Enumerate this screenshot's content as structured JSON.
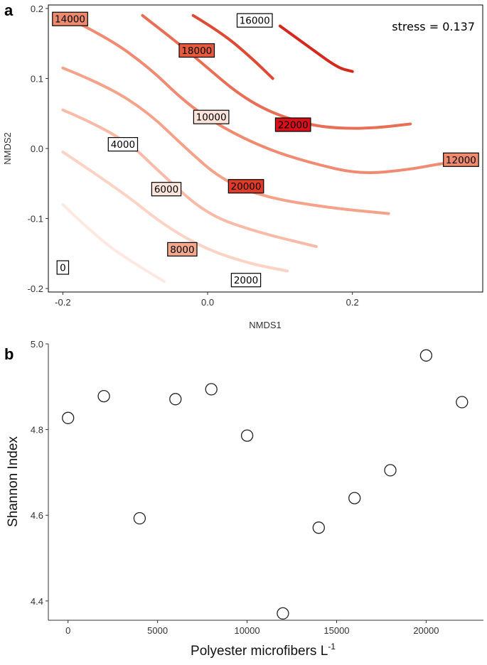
{
  "chart_data": [
    {
      "panel": "a",
      "type": "contour",
      "xlabel": "NMDS1",
      "ylabel": "NMDS2",
      "xlim": [
        -0.22,
        0.38
      ],
      "ylim": [
        -0.205,
        0.205
      ],
      "xticks": [
        "-0.2",
        "0.0",
        "0.2"
      ],
      "yticks": [
        "-0.2",
        "-0.1",
        "0.0",
        "0.1",
        "0.2"
      ],
      "annotation": "stress = 0.137",
      "contours": [
        {
          "level": 2000,
          "color": "#fde9e2",
          "path": [
            [
              -0.2,
              -0.08
            ],
            [
              -0.15,
              -0.13
            ],
            [
              -0.1,
              -0.165
            ],
            [
              -0.06,
              -0.19
            ]
          ]
        },
        {
          "level": 4000,
          "color": "#fcd3c4",
          "path": [
            [
              -0.2,
              -0.005
            ],
            [
              -0.12,
              -0.06
            ],
            [
              -0.06,
              -0.11
            ],
            [
              0.0,
              -0.145
            ],
            [
              0.06,
              -0.165
            ],
            [
              0.11,
              -0.175
            ]
          ]
        },
        {
          "level": 6000,
          "color": "#f9bba8",
          "path": [
            [
              -0.2,
              0.055
            ],
            [
              -0.12,
              0.02
            ],
            [
              -0.06,
              -0.04
            ],
            [
              0.0,
              -0.095
            ],
            [
              0.07,
              -0.12
            ],
            [
              0.15,
              -0.14
            ]
          ]
        },
        {
          "level": 8000,
          "color": "#f5a28b",
          "path": [
            [
              -0.2,
              0.115
            ],
            [
              -0.14,
              0.09
            ],
            [
              -0.08,
              0.05
            ],
            [
              -0.03,
              0.0
            ],
            [
              0.02,
              -0.045
            ],
            [
              0.08,
              -0.07
            ],
            [
              0.17,
              -0.085
            ],
            [
              0.25,
              -0.093
            ]
          ]
        },
        {
          "level": 10000,
          "color": "#f08a70",
          "path": [
            [
              -0.2,
              0.19
            ],
            [
              -0.14,
              0.16
            ],
            [
              -0.08,
              0.115
            ],
            [
              -0.03,
              0.065
            ],
            [
              0.02,
              0.03
            ],
            [
              0.08,
              0.0
            ],
            [
              0.14,
              -0.02
            ],
            [
              0.21,
              -0.037
            ],
            [
              0.28,
              -0.03
            ],
            [
              0.33,
              -0.02
            ],
            [
              0.37,
              -0.018
            ]
          ]
        },
        {
          "level": 12000,
          "color": "#e86f55",
          "path": [
            [
              -0.09,
              0.19
            ],
            [
              -0.04,
              0.15
            ],
            [
              0.0,
              0.115
            ],
            [
              0.04,
              0.08
            ],
            [
              0.08,
              0.055
            ],
            [
              0.12,
              0.04
            ],
            [
              0.16,
              0.03
            ],
            [
              0.22,
              0.028
            ],
            [
              0.28,
              0.035
            ]
          ]
        },
        {
          "level": 14000,
          "color": "#de4a35",
          "path": [
            [
              -0.02,
              0.19
            ],
            [
              0.02,
              0.165
            ],
            [
              0.06,
              0.13
            ],
            [
              0.09,
              0.1
            ]
          ]
        },
        {
          "level": 16000,
          "color": "#d42a1e",
          "path": [
            [
              0.1,
              0.175
            ],
            [
              0.14,
              0.145
            ],
            [
              0.18,
              0.115
            ],
            [
              0.2,
              0.11
            ]
          ]
        }
      ],
      "labels": [
        {
          "text": "14000",
          "x": -0.19,
          "y": 0.185,
          "fill": "#ee8a6e"
        },
        {
          "text": "16000",
          "x": 0.065,
          "y": 0.183,
          "fill": "#ffffff"
        },
        {
          "text": "18000",
          "x": -0.015,
          "y": 0.14,
          "fill": "#e55a3c"
        },
        {
          "text": "10000",
          "x": 0.005,
          "y": 0.045,
          "fill": "#fde4da"
        },
        {
          "text": "22000",
          "x": 0.118,
          "y": 0.034,
          "fill": "#d9101a"
        },
        {
          "text": "12000",
          "x": 0.35,
          "y": -0.016,
          "fill": "#ee8a6e"
        },
        {
          "text": "4000",
          "x": -0.117,
          "y": 0.006,
          "fill": "#ffffff"
        },
        {
          "text": "6000",
          "x": -0.057,
          "y": -0.058,
          "fill": "#fde4da"
        },
        {
          "text": "20000",
          "x": 0.053,
          "y": -0.054,
          "fill": "#e03a28"
        },
        {
          "text": "8000",
          "x": -0.035,
          "y": -0.144,
          "fill": "#f4a98f"
        },
        {
          "text": "0",
          "x": -0.2,
          "y": -0.17,
          "fill": "#ffffff"
        },
        {
          "text": "2000",
          "x": 0.053,
          "y": -0.188,
          "fill": "#ffffff"
        }
      ]
    },
    {
      "panel": "b",
      "type": "scatter",
      "xlabel": "Polyester microfibers L",
      "xlabel_superscript": "-1",
      "ylabel": "Shannon Index",
      "xlim": [
        -1100,
        23200
      ],
      "ylim": [
        4.355,
        5.0
      ],
      "xticks": [
        "0",
        "5000",
        "10000",
        "15000",
        "20000"
      ],
      "yticks": [
        "4.4",
        "4.6",
        "4.8",
        "5.0"
      ],
      "x": [
        0,
        2000,
        4000,
        6000,
        8000,
        10000,
        12000,
        14000,
        16000,
        18000,
        20000,
        22000
      ],
      "y": [
        4.827,
        4.878,
        4.593,
        4.871,
        4.894,
        4.786,
        4.371,
        4.571,
        4.64,
        4.705,
        4.973,
        4.864
      ]
    }
  ],
  "panel_labels": {
    "a": "a",
    "b": "b"
  }
}
